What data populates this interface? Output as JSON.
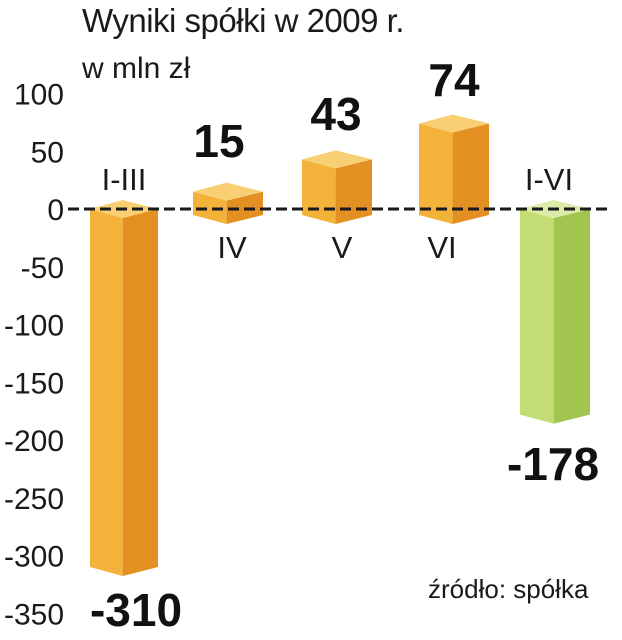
{
  "chart_data": {
    "type": "bar",
    "title": "Wyniki spółki w 2009 r.",
    "subtitle": "w mln zł",
    "source": "źródło: spółka",
    "categories": [
      "I-III",
      "IV",
      "V",
      "VI",
      "I-VI"
    ],
    "values": [
      -310,
      15,
      43,
      74,
      -178
    ],
    "value_labels": [
      "-310",
      "15",
      "43",
      "74",
      "-178"
    ],
    "ylim": [
      -350,
      100
    ],
    "yticks": [
      100,
      50,
      0,
      -50,
      -100,
      -150,
      -200,
      -250,
      -300,
      -350
    ],
    "ytick_labels": [
      "100",
      "50",
      "0",
      "-50",
      "-100",
      "-150",
      "-200",
      "-250",
      "-300",
      "-350"
    ],
    "colors": {
      "orange_front": "#f3b23a",
      "orange_side": "#e48f22",
      "orange_top": "#f8cf72",
      "green_front": "#c3dc74",
      "green_side": "#a2c54f",
      "green_top": "#dcebaa",
      "zero_line": "#1a1a1a"
    }
  }
}
